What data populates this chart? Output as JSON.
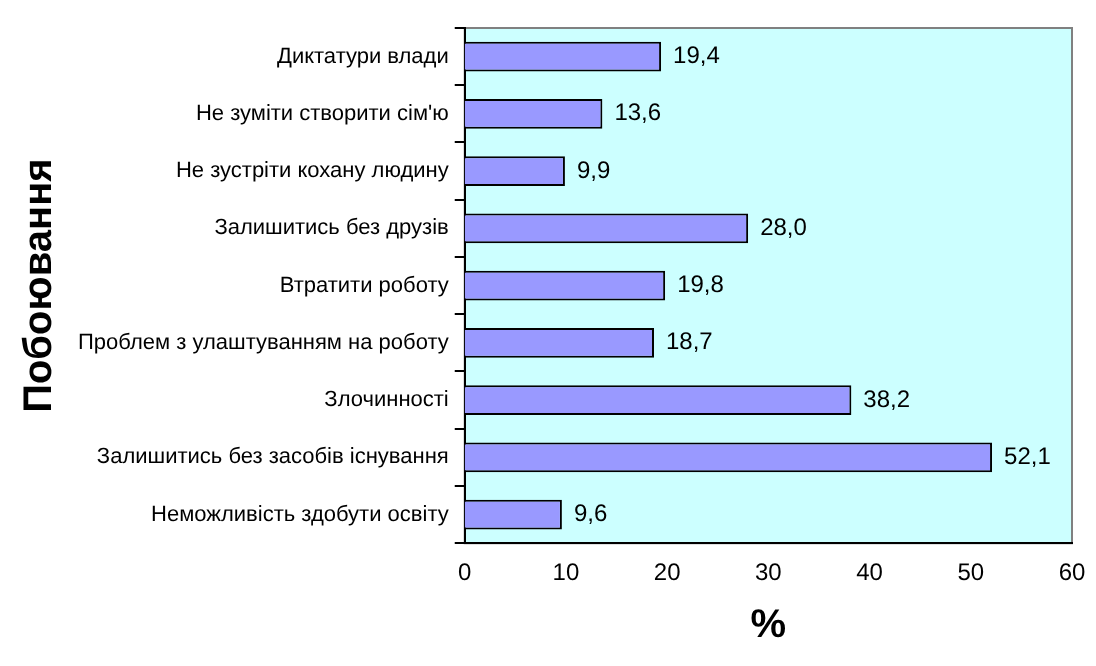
{
  "chart_data": {
    "type": "bar",
    "orientation": "horizontal",
    "xlabel": "%",
    "ylabel": "Побоювання",
    "categories": [
      "Диктатури влади",
      "Не зуміти створити сім'ю",
      "Не зустріти кохану людину",
      "Залишитись без друзів",
      "Втратити роботу",
      "Проблем з улаштуванням на роботу",
      "Злочинності",
      "Залишитись без засобів існування",
      "Неможливість здобути освіту"
    ],
    "values": [
      19.4,
      13.6,
      9.9,
      28.0,
      19.8,
      18.7,
      38.2,
      52.1,
      9.6
    ],
    "value_labels": [
      "19,4",
      "13,6",
      "9,9",
      "28,0",
      "19,8",
      "18,7",
      "38,2",
      "52,1",
      "9,6"
    ],
    "color": "#9999ff",
    "xlim": [
      0,
      60
    ],
    "xticks": [
      0,
      10,
      20,
      30,
      40,
      50,
      60
    ],
    "grid": false,
    "legend": false
  }
}
